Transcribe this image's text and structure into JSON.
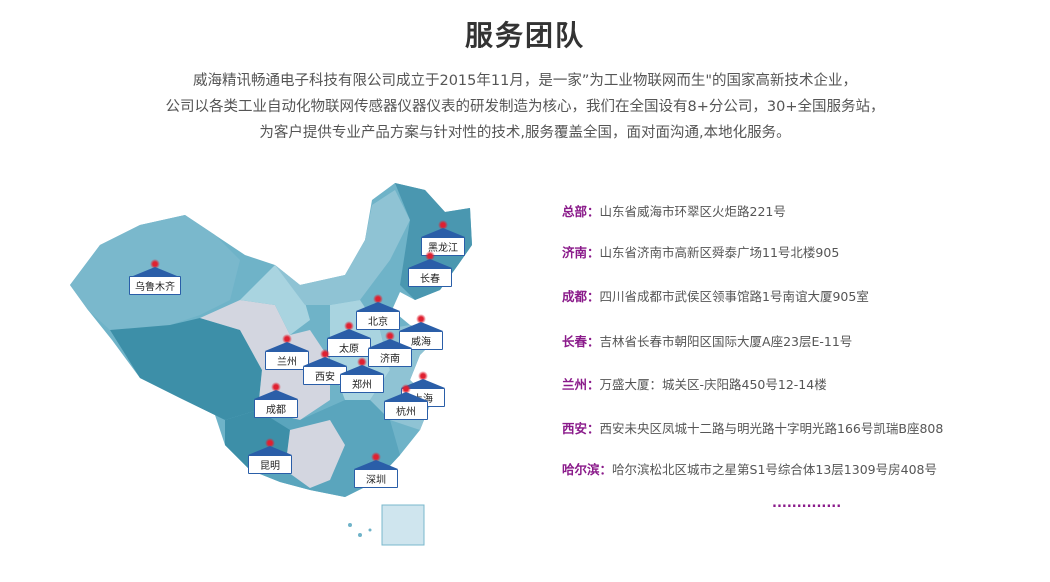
{
  "section_title": "服务团队",
  "intro": [
    "威海精讯畅通电子科技有限公司成立于2015年11月，是一家”为工业物联网而生\"的国家高新技术企业，",
    "公司以各类工业自动化物联网传感器仪器仪表的研发制造为核心，我们在全国设有8+分公司，30+全国服务站，",
    "为客户提供专业产品方案与针对性的技术,服务覆盖全国，面对面沟通,本地化服务。"
  ],
  "map_markers": [
    "乌鲁木齐",
    "黑龙江",
    "长春",
    "北京",
    "威海",
    "太原",
    "济南",
    "兰州",
    "西安",
    "郑州",
    "上海",
    "杭州",
    "成都",
    "昆明",
    "深圳"
  ],
  "offices": [
    {
      "city": "总部：",
      "address": "山东省威海市环翠区火炬路221号"
    },
    {
      "city": "济南：",
      "address": "山东省济南市高新区舜泰广场11号北楼905"
    },
    {
      "city": "成都：",
      "address": "四川省成都市武侯区领事馆路1号南谊大厦905室"
    },
    {
      "city": "长春：",
      "address": "吉林省长春市朝阳区国际大厦A座23层E-11号"
    },
    {
      "city": "兰州：",
      "address": "万盛大厦：城关区-庆阳路450号12-14楼"
    },
    {
      "city": "西安：",
      "address": "西安未央区凤城十二路与明光路十字明光路166号凯瑞B座808"
    },
    {
      "city": "哈尔滨：",
      "address": "哈尔滨松北区城市之星第S1号综合体13层1309号房408号"
    }
  ],
  "more": "..............",
  "colors": {
    "city": "#8a1a8a",
    "marker_border": "#2a5ea8",
    "map_dark": "#3d8fa8",
    "map_mid": "#6fb3c8",
    "map_light": "#a9d4e0",
    "map_gray": "#d3d6e0"
  }
}
